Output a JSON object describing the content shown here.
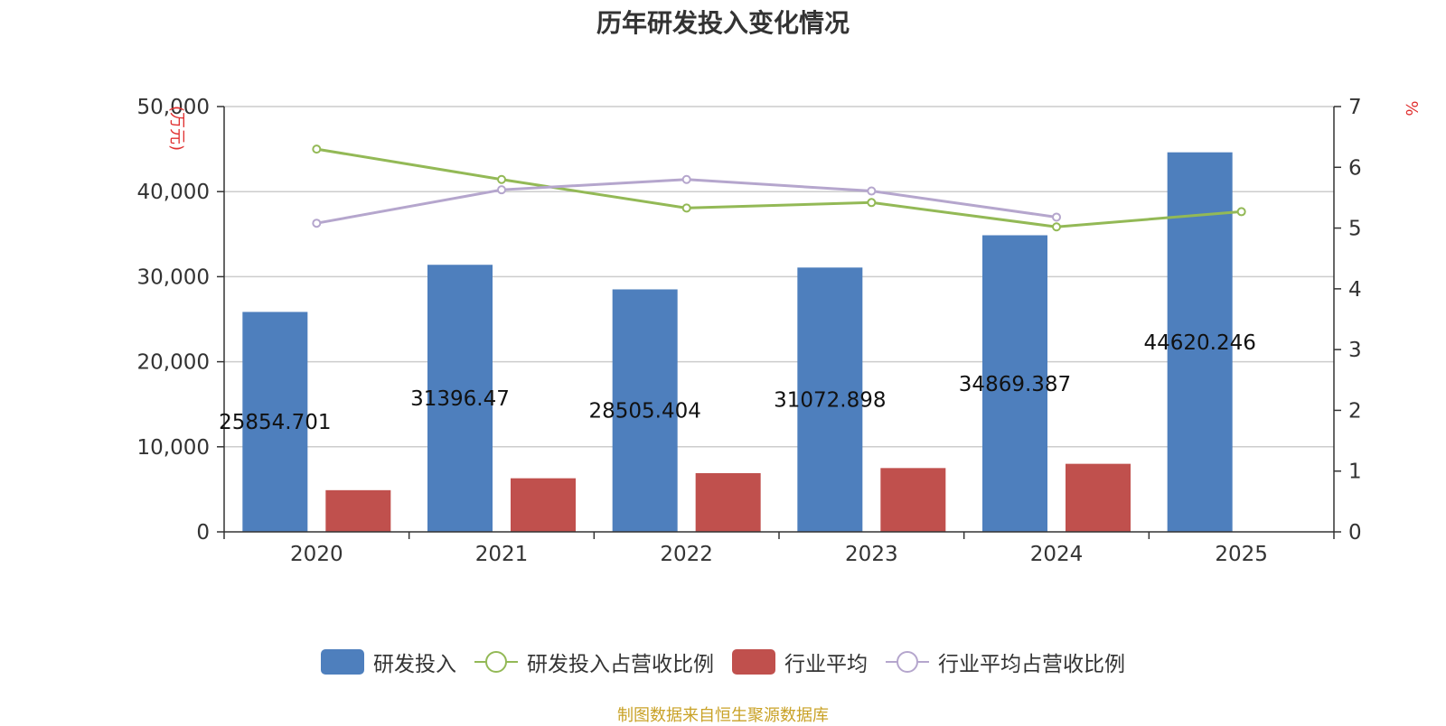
{
  "title": "历年研发投入变化情况",
  "footer": "制图数据来自恒生聚源数据库",
  "chart_data": {
    "type": "bar",
    "categories": [
      "2020",
      "2021",
      "2022",
      "2023",
      "2024",
      "2025"
    ],
    "y_left": {
      "unit": "万元",
      "range": [
        0,
        50000
      ],
      "ticks": [
        "0",
        "10,000",
        "20,000",
        "30,000",
        "40,000",
        "50,000"
      ],
      "tick_values": [
        0,
        10000,
        20000,
        30000,
        40000,
        50000
      ]
    },
    "y_right": {
      "unit": "%",
      "range": [
        0,
        7
      ],
      "ticks": [
        "0",
        "1",
        "2",
        "3",
        "4",
        "5",
        "6",
        "7"
      ],
      "tick_values": [
        0,
        1,
        2,
        3,
        4,
        5,
        6,
        7
      ]
    },
    "grid": true,
    "legend_position": "bottom",
    "series": [
      {
        "name": "研发投入",
        "kind": "bar",
        "axis": "left",
        "color": "#4e7fbd",
        "values": [
          25854.701,
          31396.47,
          28505.404,
          31072.898,
          34869.387,
          44620.246
        ],
        "labels": [
          "25854.701",
          "31396.47",
          "28505.404",
          "31072.898",
          "34869.387",
          "44620.246"
        ]
      },
      {
        "name": "研发投入占营收比例",
        "kind": "line",
        "axis": "right",
        "color": "#93b956",
        "values": [
          6.3,
          5.8,
          5.33,
          5.42,
          5.02,
          5.27
        ]
      },
      {
        "name": "行业平均",
        "kind": "bar",
        "axis": "left",
        "color": "#c0504d",
        "values": [
          4900,
          6300,
          6900,
          7500,
          8000,
          null
        ]
      },
      {
        "name": "行业平均占营收比例",
        "kind": "line",
        "axis": "right",
        "color": "#b5a6cd",
        "values": [
          5.08,
          5.63,
          5.8,
          5.61,
          5.18,
          null
        ]
      }
    ]
  }
}
